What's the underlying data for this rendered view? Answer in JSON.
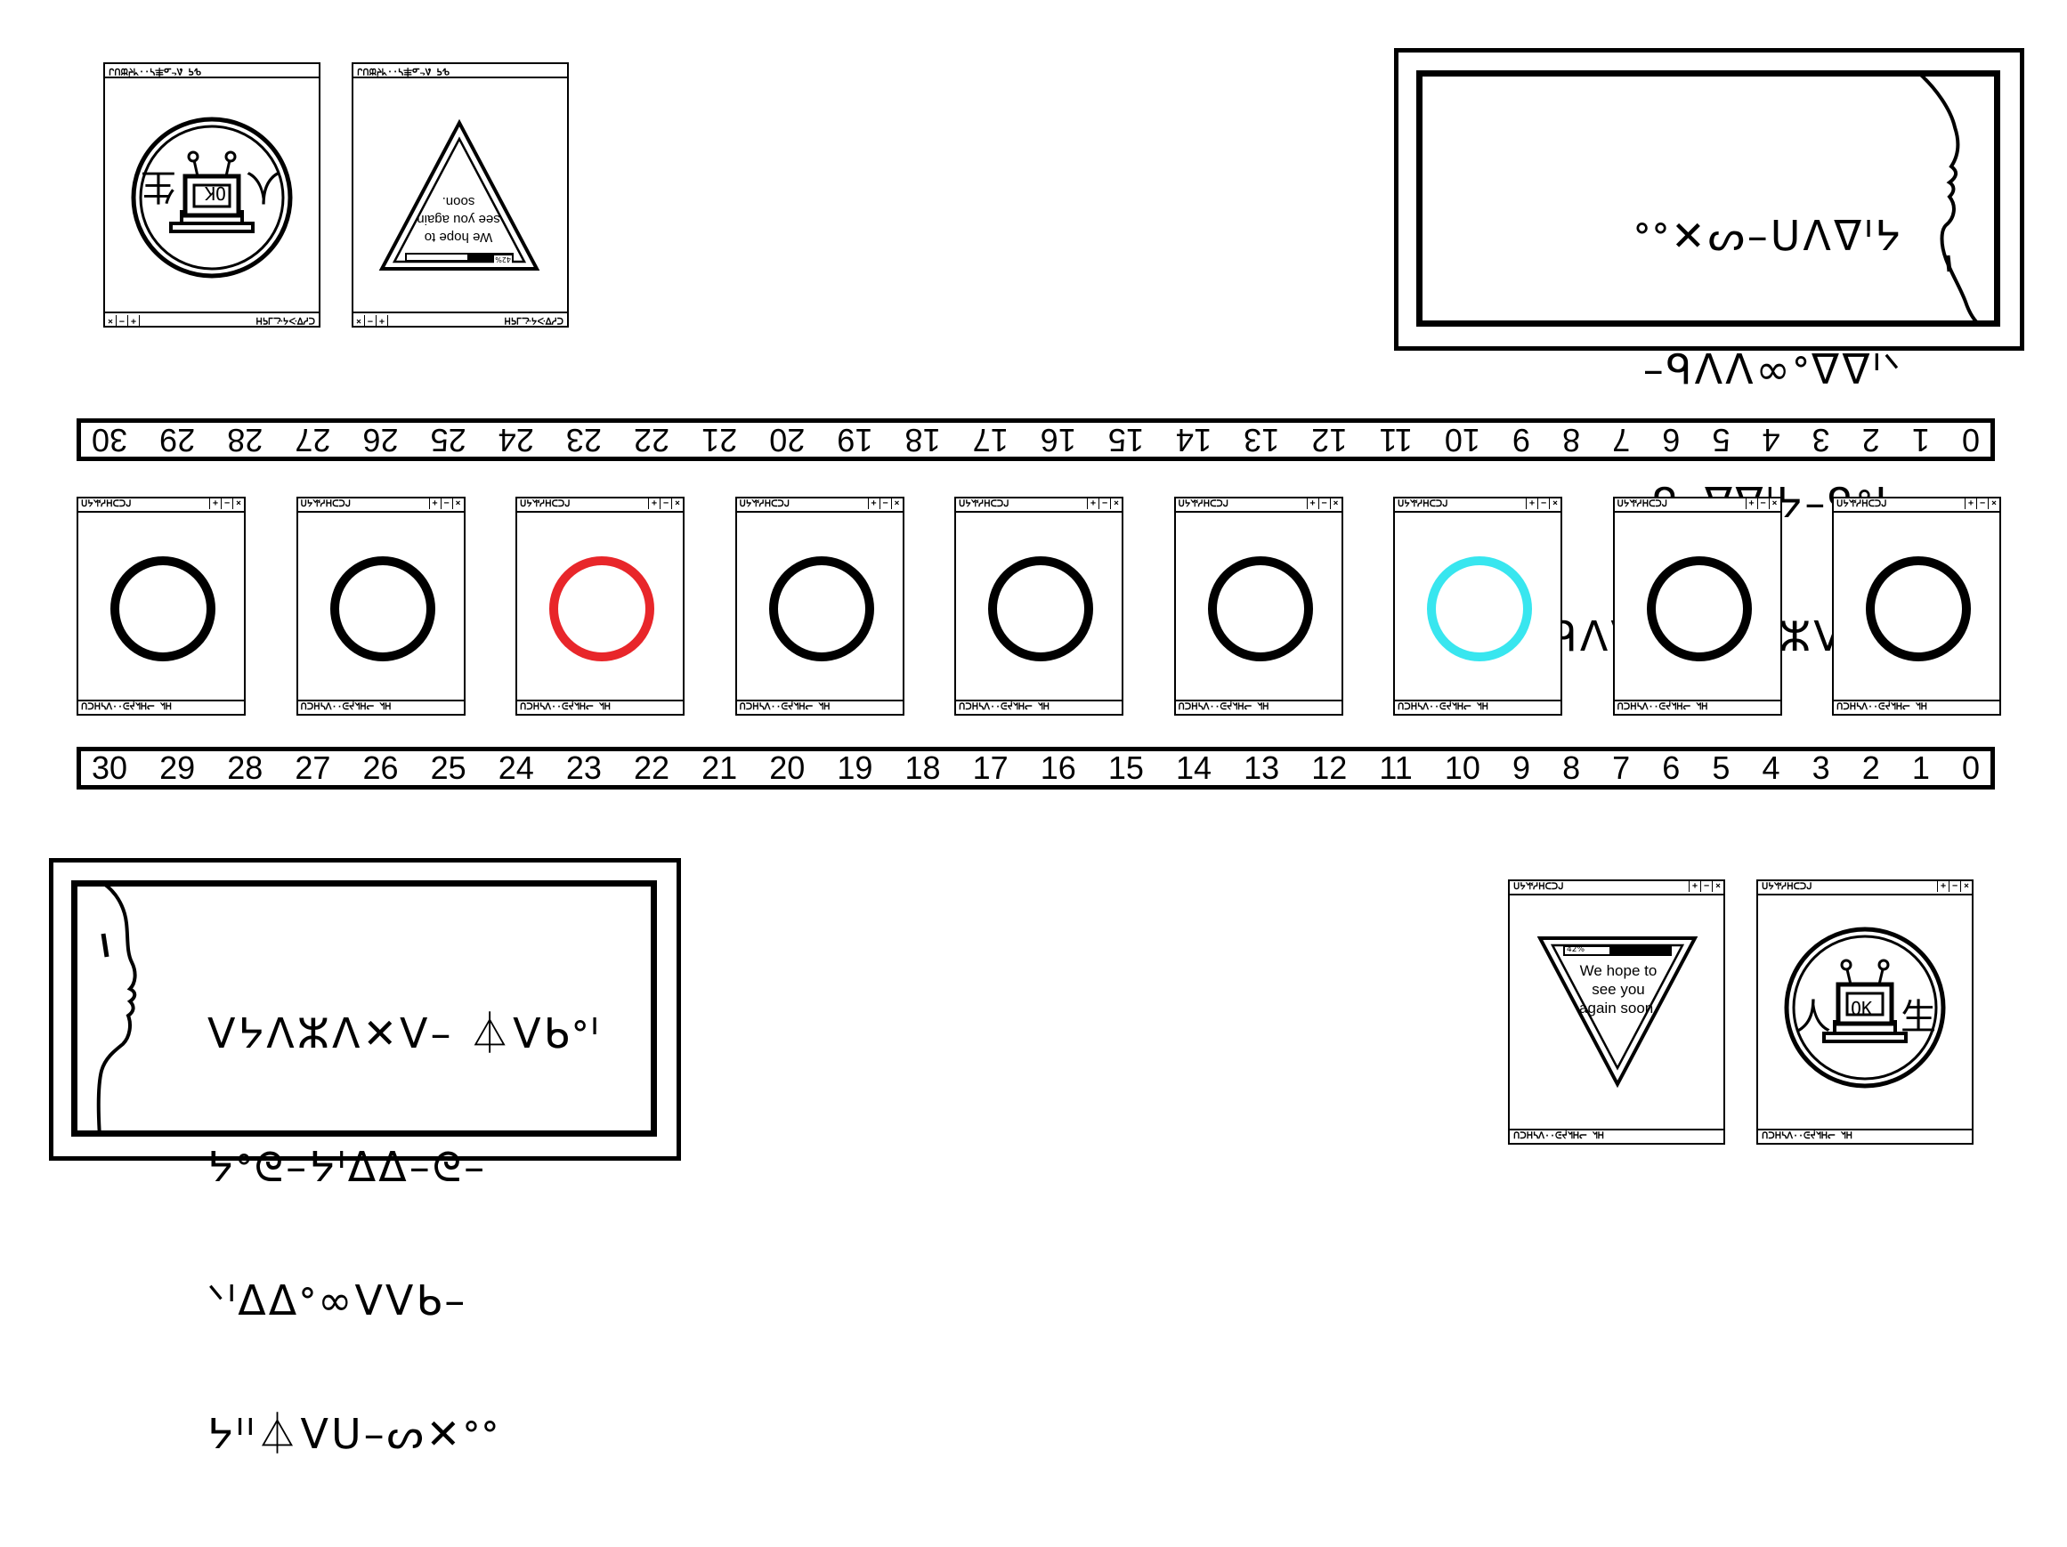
{
  "top_left_cards": {
    "title_glyphs": "ᕴᕋ ᕕᓪᓄ丰ᓭ··ᖿᔫᙔᑌᒍ",
    "footer_glyphs": "ᑕᓯᐁᑀᔦᓨᒧᕋᕼ",
    "controls": [
      "×",
      "−",
      "+"
    ],
    "card1": {
      "ok_label": "OK",
      "left_glyph": "生",
      "right_glyph": "人"
    },
    "card2": {
      "message": "We hope to see you again soon.",
      "progress_label": "42%",
      "progress": 0.42
    }
  },
  "bottom_right_cards": {
    "title_glyphs": "ᑌᔭᖿᓫᓱᕼᑕᑐᒍ",
    "footer_glyphs": "ᑎᑐᕼᓴᐱ··ᕮᔫᖿᕼᓕ ᖿᕼ",
    "controls": [
      "+",
      "−",
      "×"
    ],
    "card1": {
      "message": "We hope to see you again soon.",
      "progress_label": "42%",
      "progress": 0.42
    },
    "card2": {
      "ok_label": "OK",
      "left_glyph": "人",
      "right_glyph": "生"
    }
  },
  "ring_windows": {
    "title_glyphs": "ᑌᔭᖿᓫᓱᕼᑕᑐᒍ",
    "footer_glyphs": "ᑎᑐᕼᓴᐱ··ᕮᔫᖿᕼᓕ ᖿᕼ",
    "controls": [
      "+",
      "−",
      "×"
    ],
    "rings": [
      {
        "color": "#000000"
      },
      {
        "color": "#000000"
      },
      {
        "color": "#e8262a"
      },
      {
        "color": "#000000"
      },
      {
        "color": "#000000"
      },
      {
        "color": "#000000"
      },
      {
        "color": "#38e6ef"
      },
      {
        "color": "#000000"
      },
      {
        "color": "#000000"
      }
    ]
  },
  "ruler_top": [
    "0",
    "1",
    "2",
    "3",
    "4",
    "5",
    "6",
    "7",
    "8",
    "9",
    "10",
    "11",
    "12",
    "13",
    "14",
    "15",
    "16",
    "17",
    "18",
    "19",
    "20",
    "21",
    "22",
    "23",
    "24",
    "25",
    "26",
    "27",
    "28",
    "29",
    "30"
  ],
  "ruler_bottom": [
    "30",
    "29",
    "28",
    "27",
    "26",
    "25",
    "24",
    "23",
    "22",
    "21",
    "20",
    "19",
    "18",
    "17",
    "16",
    "15",
    "14",
    "13",
    "12",
    "11",
    "10",
    "9",
    "8",
    "7",
    "6",
    "5",
    "4",
    "3",
    "2",
    "1",
    "0"
  ],
  "speech_top": {
    "lines": [
      "ᐤᐤ✕ᔕ–ᑌᐱᐁᑊᔭ",
      "–ᑫᐱᐱ∞ᐤᐁᐁᑊᐠ",
      "–ᑫ–ᐁᐁᑊᔭ–ᑫᐤᔭ",
      "ᑊᐤᑫᐱᐁ –ᐱ✕ᐯⵣᐯᔭᐱ"
    ]
  },
  "speech_bottom": {
    "lines": [
      "ᐯᔭᐱⵣᐱ✕ᐯ– ⏃ᐯᑲᐤᑊ",
      "ᔭᐤᘓ–ᔭᑊᐃᐃ–ᘓ–",
      "ᐠᑊᐃᐃᐤ∞ᐯᐯᑲ–",
      "ᔭᑊᑊ⏃ᐯᑌ–ᔕ✕ᐤᐤ"
    ]
  }
}
